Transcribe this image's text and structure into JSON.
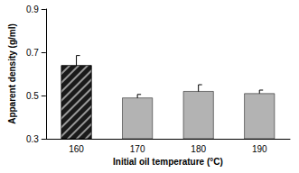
{
  "chart_data": {
    "type": "bar",
    "x_label": "Initial oil temperature (°C)",
    "y_label": "Apparent density (g/ml)",
    "categories": [
      "160",
      "170",
      "180",
      "190"
    ],
    "values": [
      0.64,
      0.49,
      0.52,
      0.51
    ],
    "errors": [
      0.045,
      0.015,
      0.03,
      0.015
    ],
    "colors": [
      "#1a1a1a",
      "#b3b3b3",
      "#b3b3b3",
      "#b3b3b3"
    ],
    "ylim": [
      0.3,
      0.9
    ],
    "yticks": [
      0.3,
      0.5,
      0.7,
      0.9
    ],
    "grid": false
  }
}
